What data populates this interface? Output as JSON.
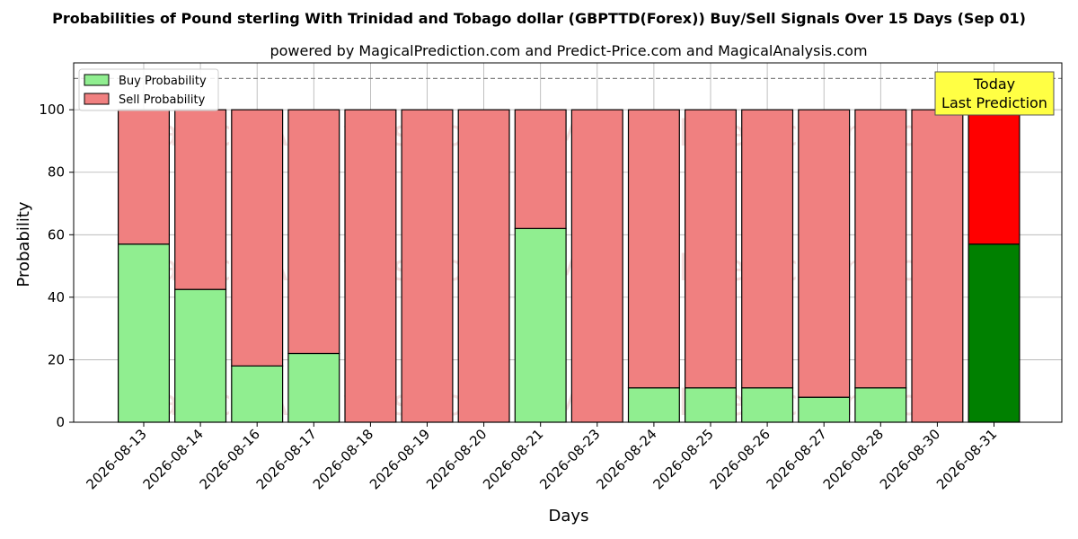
{
  "chart_data": {
    "type": "bar",
    "stacked": true,
    "title": "Probabilities of Pound sterling With Trinidad and Tobago dollar (GBPTTD(Forex)) Buy/Sell Signals Over 15 Days (Sep 01)",
    "subtitle": "powered by MagicalPrediction.com and Predict-Price.com and MagicalAnalysis.com",
    "xlabel": "Days",
    "ylabel": "Probability",
    "ylim": [
      0,
      115
    ],
    "yticks": [
      0,
      20,
      40,
      60,
      80,
      100
    ],
    "reference_line": 110,
    "grid": true,
    "legend_placement": "top-left",
    "categories": [
      "2026-08-13",
      "2026-08-14",
      "2026-08-16",
      "2026-08-17",
      "2026-08-18",
      "2026-08-19",
      "2026-08-20",
      "2026-08-21",
      "2026-08-23",
      "2026-08-24",
      "2026-08-25",
      "2026-08-26",
      "2026-08-27",
      "2026-08-28",
      "2026-08-30",
      "2026-08-31"
    ],
    "series": [
      {
        "name": "Buy Probability",
        "color": "#90ee90",
        "highlight_color": "#008000",
        "values": [
          57,
          42.5,
          18,
          22,
          0,
          0,
          0,
          62,
          0,
          11,
          11,
          11,
          8,
          11,
          0,
          57
        ]
      },
      {
        "name": "Sell Probability",
        "color": "#f08080",
        "highlight_color": "#ff0000",
        "values": [
          43,
          57.5,
          82,
          78,
          100,
          100,
          100,
          38,
          100,
          89,
          89,
          89,
          92,
          89,
          100,
          43
        ]
      }
    ],
    "highlight_index": 15,
    "annotation": {
      "line1": "Today",
      "line2": "Last Prediction",
      "color": "#ffff44"
    },
    "watermarks": [
      "MagicalAnalysis.com",
      "MagicalPrediction.com"
    ]
  }
}
